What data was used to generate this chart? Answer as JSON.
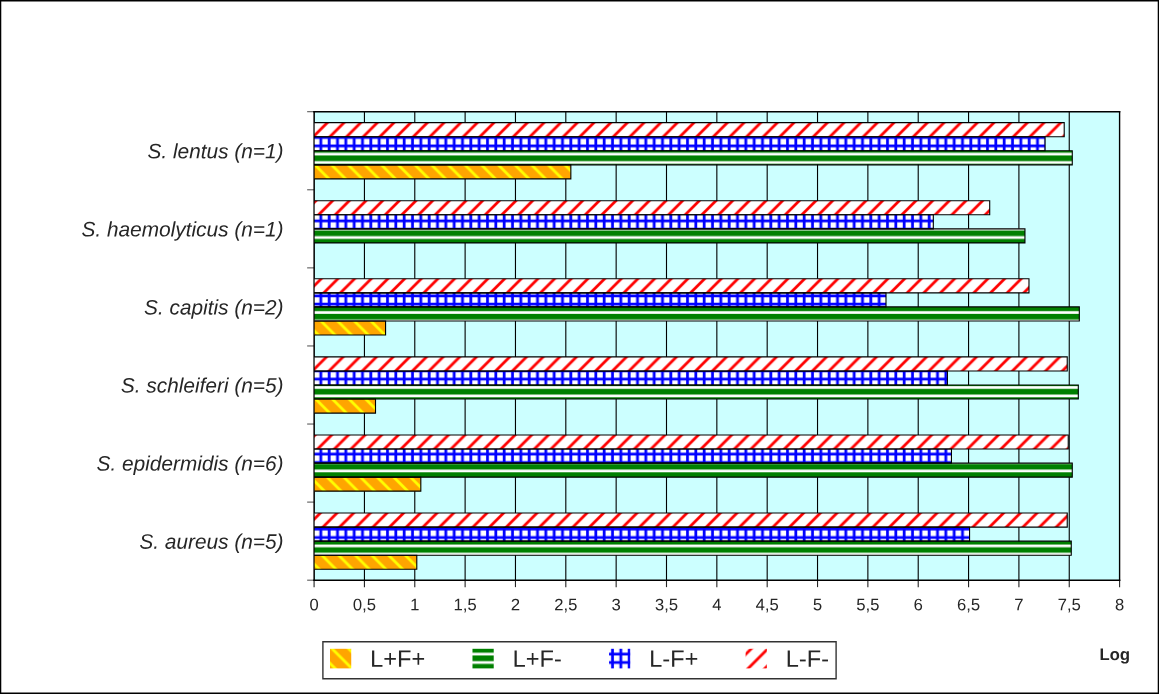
{
  "chart_data": {
    "type": "bar",
    "orientation": "horizontal",
    "categories": [
      "S. lentus (n=1)",
      "S. haemolyticus (n=1)",
      "S. capitis (n=2)",
      "S. schleiferi (n=5)",
      "S. epidermidis (n=6)",
      "S. aureus (n=5)"
    ],
    "series": [
      {
        "name": "L+F+",
        "color": "#ffa500",
        "values": [
          2.55,
          null,
          0.71,
          0.61,
          1.06,
          1.02
        ]
      },
      {
        "name": "L+F-",
        "color": "#008000",
        "values": [
          7.53,
          7.06,
          7.6,
          7.59,
          7.53,
          7.52
        ]
      },
      {
        "name": "L-F+",
        "color": "#0000ff",
        "values": [
          7.26,
          6.15,
          5.68,
          6.29,
          6.33,
          6.51
        ]
      },
      {
        "name": "L-F-",
        "color": "#ff0000",
        "values": [
          7.45,
          6.71,
          7.1,
          7.48,
          7.49,
          7.48
        ]
      }
    ],
    "xlim": [
      0,
      8
    ],
    "xticks": [
      0,
      {
        "value": 0.5,
        "label": "0,5"
      },
      1,
      {
        "value": 1.5,
        "label": "1,5"
      },
      2,
      {
        "value": 2.5,
        "label": "2,5"
      },
      3,
      {
        "value": 3.5,
        "label": "3,5"
      },
      4,
      {
        "value": 4.5,
        "label": "4,5"
      },
      5,
      {
        "value": 5.5,
        "label": "5,5"
      },
      6,
      {
        "value": 6.5,
        "label": "6,5"
      },
      7,
      {
        "value": 7.5,
        "label": "7,5"
      },
      8
    ],
    "xlabel": "Log",
    "grid": "x",
    "legend": "bottom"
  }
}
